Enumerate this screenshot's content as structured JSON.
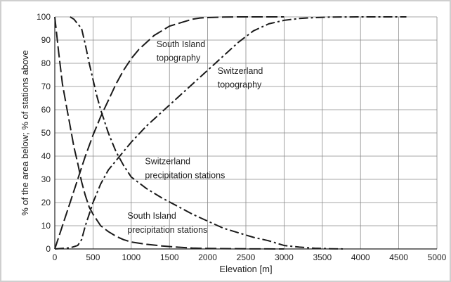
{
  "chart_data": {
    "type": "line",
    "xlabel": "Elevation [m]",
    "ylabel": "% of the area below; % of stations above",
    "xlim": [
      0,
      5000
    ],
    "ylim": [
      0,
      100
    ],
    "xticks": [
      0,
      500,
      1000,
      1500,
      2000,
      2500,
      3000,
      3500,
      4000,
      4500,
      5000
    ],
    "yticks": [
      0,
      10,
      20,
      30,
      40,
      50,
      60,
      70,
      80,
      90,
      100
    ],
    "grid": true,
    "series": [
      {
        "name": "South Island topography",
        "dash": "long-dash",
        "x": [
          0,
          100,
          200,
          300,
          400,
          500,
          600,
          700,
          800,
          900,
          1000,
          1100,
          1200,
          1300,
          1400,
          1500,
          1600,
          1700,
          1800,
          1900,
          2000,
          2200,
          2400,
          2600,
          2800,
          3000
        ],
        "y": [
          0,
          10,
          20,
          30,
          40,
          49,
          57,
          64,
          71,
          77,
          82,
          86,
          89,
          92,
          94,
          96,
          97,
          98,
          99,
          99.5,
          99.7,
          99.9,
          100,
          100,
          100,
          100
        ]
      },
      {
        "name": "Switzerland topography",
        "dash": "dash-dot",
        "x": [
          0,
          200,
          300,
          350,
          400,
          450,
          500,
          600,
          700,
          800,
          900,
          1000,
          1200,
          1400,
          1600,
          1800,
          2000,
          2200,
          2400,
          2600,
          2800,
          3000,
          3200,
          3400,
          3600,
          4000,
          4600
        ],
        "y": [
          0,
          0.5,
          1.5,
          4,
          10,
          15,
          20,
          28,
          34,
          38,
          42,
          46,
          53,
          59,
          65,
          71,
          77,
          83,
          89,
          94,
          97,
          98.5,
          99.3,
          99.7,
          99.9,
          100,
          100
        ]
      },
      {
        "name": "South Island precipitation stations",
        "dash": "long-dash",
        "x": [
          0,
          50,
          100,
          150,
          200,
          250,
          300,
          350,
          400,
          450,
          500,
          600,
          700,
          800,
          900,
          1000,
          1200,
          1400,
          1600,
          1800,
          2000,
          2500,
          3000
        ],
        "y": [
          100,
          85,
          71,
          62,
          53,
          44,
          37,
          29,
          23,
          18,
          15,
          10,
          7.5,
          5.5,
          4,
          3,
          2,
          1.3,
          0.8,
          0.4,
          0.2,
          0.05,
          0
        ]
      },
      {
        "name": "Switzerland precipitation stations",
        "dash": "dash-dot",
        "x": [
          200,
          250,
          300,
          350,
          400,
          450,
          500,
          550,
          600,
          700,
          800,
          900,
          1000,
          1200,
          1400,
          1600,
          1800,
          2000,
          2200,
          2400,
          2600,
          2800,
          3000,
          3200,
          3400,
          3600,
          3800
        ],
        "y": [
          100,
          99,
          97,
          95,
          88,
          80,
          73,
          66,
          60,
          50,
          42,
          36,
          31,
          26,
          22,
          18.5,
          15,
          12,
          9,
          7,
          5,
          3.5,
          1.5,
          0.8,
          0.3,
          0.1,
          0
        ]
      }
    ],
    "annotations": [
      {
        "text": "South Island",
        "x": 1330,
        "y": 87
      },
      {
        "text": "topography",
        "x": 1330,
        "y": 81
      },
      {
        "text": "Switzerland",
        "x": 2130,
        "y": 75.5
      },
      {
        "text": "topography",
        "x": 2130,
        "y": 69.5
      },
      {
        "text": "Switzerland",
        "x": 1180,
        "y": 36.5
      },
      {
        "text": "precipitation stations",
        "x": 1180,
        "y": 30.5
      },
      {
        "text": "South Island",
        "x": 950,
        "y": 13
      },
      {
        "text": "precipitation stations",
        "x": 950,
        "y": 7
      }
    ]
  }
}
